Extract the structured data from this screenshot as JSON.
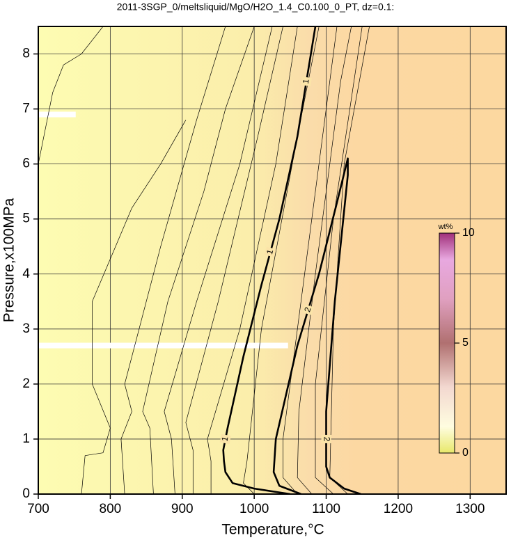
{
  "chart_data": {
    "type": "contour",
    "title": "2011-3SGP_0/meltsliquid/MgO/H2O_1.4_C0.100_0_PT, dz=0.1:",
    "x_label": "Temperature,°C",
    "y_label": "Pressure,x100MPa",
    "xlim": [
      700,
      1350
    ],
    "ylim": [
      0,
      8.5
    ],
    "xticks": [
      700,
      800,
      900,
      1000,
      1100,
      1200,
      1300
    ],
    "yticks": [
      0,
      1,
      2,
      3,
      4,
      5,
      6,
      7,
      8
    ],
    "grid": true,
    "contours": [
      {
        "x": [
          700,
          720,
          735,
          760,
          790
        ],
        "y": [
          6.0,
          7.3,
          7.8,
          8.0,
          8.5
        ]
      },
      {
        "x": [
          760,
          765,
          790,
          800,
          775,
          775,
          830,
          870,
          905
        ],
        "y": [
          0,
          0.7,
          0.75,
          1.2,
          2.0,
          3.5,
          5.2,
          6.0,
          6.8
        ]
      },
      {
        "x": [
          820,
          815,
          830,
          820,
          870,
          920,
          960
        ],
        "y": [
          0,
          1.0,
          1.5,
          2.0,
          4.5,
          6.8,
          8.5
        ]
      },
      {
        "x": [
          860,
          855,
          845,
          880,
          930,
          960,
          1000
        ],
        "y": [
          0,
          1.2,
          1.5,
          3.5,
          5.5,
          7.0,
          8.5
        ]
      },
      {
        "x": [
          890,
          885,
          875,
          920,
          980,
          1025
        ],
        "y": [
          0,
          1.0,
          1.5,
          3.5,
          6.0,
          8.5
        ]
      },
      {
        "x": [
          915,
          915,
          905,
          950,
          1005,
          1040
        ],
        "y": [
          0,
          0.8,
          1.3,
          3.5,
          6.5,
          8.5
        ]
      },
      {
        "x": [
          940,
          940,
          935,
          980,
          1030,
          1060
        ],
        "y": [
          0,
          0.6,
          1.0,
          3.0,
          6.0,
          8.5
        ]
      },
      {
        "x": [
          1000,
          985,
          990,
          1010,
          1060,
          1090
        ],
        "y": [
          0,
          0.2,
          0.6,
          3.0,
          6.5,
          8.5
        ]
      },
      {
        "x": [
          1060,
          1040,
          1040,
          1060,
          1100,
          1115
        ],
        "y": [
          0,
          0.3,
          1.0,
          3.0,
          7.0,
          8.5
        ]
      },
      {
        "x": [
          1080,
          1060,
          1062,
          1085,
          1120,
          1135
        ],
        "y": [
          0,
          0.3,
          1.5,
          4.0,
          7.5,
          8.5
        ]
      },
      {
        "x": [
          1110,
          1085,
          1085,
          1110,
          1150
        ],
        "y": [
          0,
          0.3,
          2.0,
          5.0,
          8.5
        ]
      },
      {
        "x": [
          1130,
          1105,
          1110,
          1125,
          1160
        ],
        "y": [
          0,
          0.3,
          3.0,
          6.0,
          8.5
        ]
      },
      {
        "label": "1",
        "thick": true,
        "x": [
          1050,
          1000,
          970,
          960,
          958,
          957,
          963,
          985,
          1010,
          1035,
          1060,
          1085
        ],
        "y": [
          0,
          0.1,
          0.2,
          0.4,
          0.6,
          0.8,
          1.2,
          2.5,
          3.8,
          5.0,
          6.5,
          8.5
        ]
      },
      {
        "label": "2",
        "thick": true,
        "x": [
          1065,
          1035,
          1027,
          1030,
          1060,
          1090,
          1115,
          1130,
          1130,
          1112,
          1100,
          1100,
          1105,
          1125,
          1148
        ],
        "y": [
          0,
          0.15,
          0.4,
          1.0,
          2.7,
          4.0,
          5.3,
          6.1,
          5.8,
          3.5,
          1.5,
          0.5,
          0.3,
          0.1,
          0
        ]
      }
    ],
    "colorbar": {
      "label": "wt%",
      "lim": [
        0,
        10
      ],
      "ticks": [
        0,
        5,
        10
      ]
    }
  }
}
